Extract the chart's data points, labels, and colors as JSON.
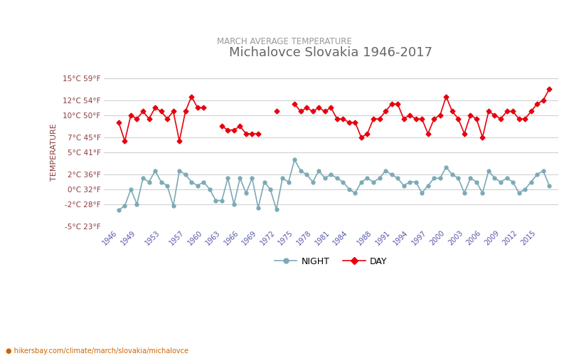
{
  "title": "Michalovce Slovakia 1946-2017",
  "subtitle": "MARCH AVERAGE TEMPERATURE",
  "ylabel": "TEMPERATURE",
  "footer": "hikersbay.com/climate/march/slovakia/michalovce",
  "day_color": "#e8000d",
  "night_color": "#7baab6",
  "bg_color": "#ffffff",
  "grid_color": "#cccccc",
  "title_color": "#666666",
  "subtitle_color": "#999999",
  "label_color": "#8b3a3a",
  "xtick_color": "#5555aa",
  "footer_color": "#cc6600",
  "ylim_min": -5,
  "ylim_max": 15,
  "yticks_c": [
    -5,
    -2,
    0,
    2,
    5,
    7,
    10,
    12,
    15
  ],
  "yticks_f": [
    23,
    28,
    32,
    36,
    41,
    45,
    50,
    54,
    59
  ],
  "day_data": {
    "1946": 9.0,
    "1947": 6.5,
    "1948": 10.0,
    "1949": 9.5,
    "1950": 10.5,
    "1951": 9.5,
    "1952": 11.0,
    "1953": 10.5,
    "1954": 9.5,
    "1955": 10.5,
    "1956": 6.5,
    "1957": 10.5,
    "1958": 12.5,
    "1959": 11.0,
    "1960": 11.0,
    "1963": 8.5,
    "1964": 8.0,
    "1965": 8.0,
    "1966": 8.5,
    "1967": 7.5,
    "1968": 7.5,
    "1969": 7.5,
    "1972": 10.5,
    "1975": 11.5,
    "1976": 10.5,
    "1977": 11.0,
    "1978": 10.5,
    "1979": 11.0,
    "1980": 10.5,
    "1981": 11.0,
    "1982": 9.5,
    "1983": 9.5,
    "1984": 9.0,
    "1985": 9.0,
    "1986": 7.0,
    "1987": 7.5,
    "1988": 9.5,
    "1989": 9.5,
    "1990": 10.5,
    "1991": 11.5,
    "1992": 11.5,
    "1993": 9.5,
    "1994": 10.0,
    "1995": 9.5,
    "1996": 9.5,
    "1997": 7.5,
    "1998": 9.5,
    "1999": 10.0,
    "2000": 12.5,
    "2001": 10.5,
    "2002": 9.5,
    "2003": 7.5,
    "2004": 10.0,
    "2005": 9.5,
    "2006": 7.0,
    "2007": 10.5,
    "2008": 10.0,
    "2009": 9.5,
    "2010": 10.5,
    "2011": 10.5,
    "2012": 9.5,
    "2013": 9.5,
    "2014": 10.5,
    "2015": 11.5,
    "2016": 12.0,
    "2017": 13.5
  },
  "night_data": {
    "1946": -2.8,
    "1947": -2.2,
    "1948": 0.0,
    "1949": -2.0,
    "1950": 1.5,
    "1951": 1.0,
    "1952": 2.5,
    "1953": 1.0,
    "1954": 0.5,
    "1955": -2.2,
    "1956": 2.5,
    "1957": 2.0,
    "1958": 1.0,
    "1959": 0.5,
    "1960": 1.0,
    "1961": 0.0,
    "1962": -1.5,
    "1963": -1.5,
    "1964": 1.5,
    "1965": -2.0,
    "1966": 1.5,
    "1967": -0.5,
    "1968": 1.5,
    "1969": -2.5,
    "1970": 1.0,
    "1971": 0.0,
    "1972": -2.7,
    "1973": 1.5,
    "1974": 1.0,
    "1975": 4.0,
    "1976": 2.5,
    "1977": 2.0,
    "1978": 1.0,
    "1979": 2.5,
    "1980": 1.5,
    "1981": 2.0,
    "1982": 1.5,
    "1983": 1.0,
    "1984": 0.0,
    "1985": -0.5,
    "1986": 1.0,
    "1987": 1.5,
    "1988": 1.0,
    "1989": 1.5,
    "1990": 2.5,
    "1991": 2.0,
    "1992": 1.5,
    "1993": 0.5,
    "1994": 1.0,
    "1995": 1.0,
    "1996": -0.5,
    "1997": 0.5,
    "1998": 1.5,
    "1999": 1.5,
    "2000": 3.0,
    "2001": 2.0,
    "2002": 1.5,
    "2003": -0.5,
    "2004": 1.5,
    "2005": 1.0,
    "2006": -0.5,
    "2007": 2.5,
    "2008": 1.5,
    "2009": 1.0,
    "2010": 1.5,
    "2011": 1.0,
    "2012": -0.5,
    "2013": 0.0,
    "2014": 1.0,
    "2015": 2.0,
    "2016": 2.5,
    "2017": 0.5
  }
}
